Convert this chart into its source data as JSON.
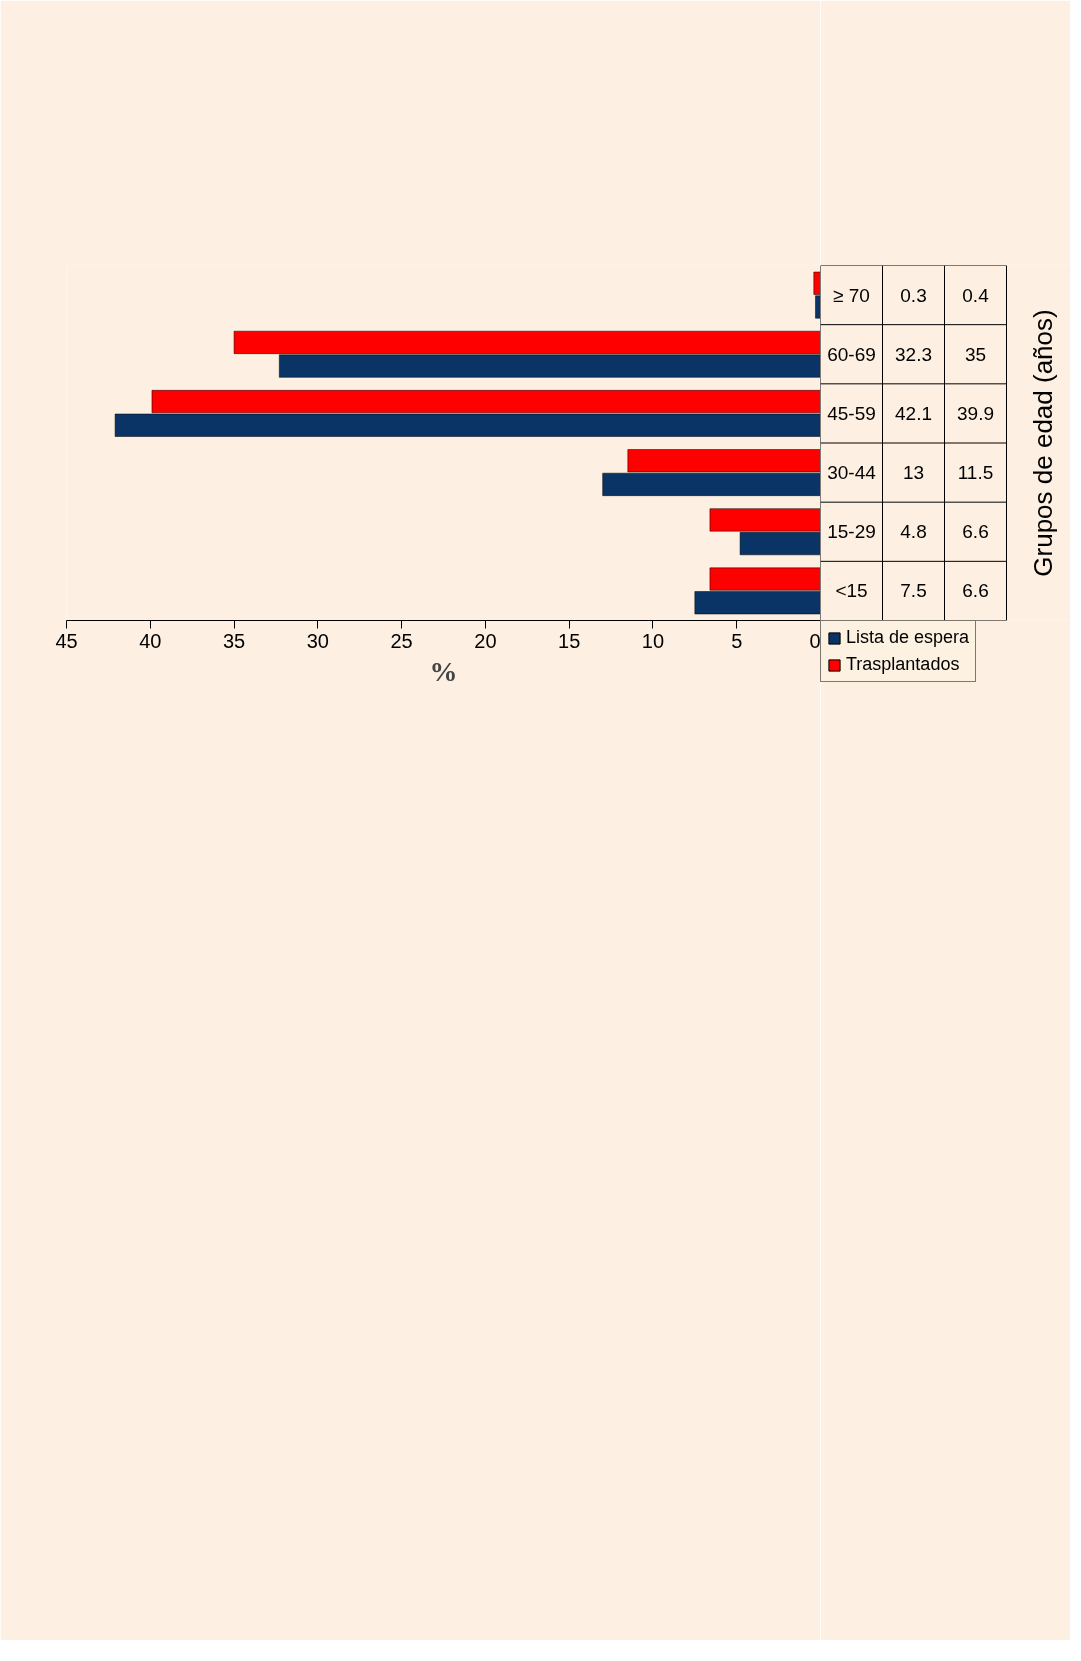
{
  "chart_data": {
    "type": "bar",
    "orientation": "horizontal",
    "xlabel": "%",
    "annotations": [
      "Grupos de edad (años)"
    ],
    "categories": [
      "≥ 70",
      "60-69",
      "45-59",
      "30-44",
      "15-29",
      "<15"
    ],
    "series": [
      {
        "name": "Lista de espera",
        "color": "#0a3366",
        "values": [
          0.3,
          32.3,
          42.1,
          13,
          4.8,
          7.5
        ]
      },
      {
        "name": "Trasplantados",
        "color": "#ff0000",
        "values": [
          0.4,
          35,
          39.9,
          11.5,
          6.6,
          6.6
        ]
      }
    ],
    "xlim": [
      45,
      0
    ],
    "xticks": [
      0,
      5,
      10,
      15,
      20,
      25,
      30,
      35,
      40,
      45
    ],
    "data_labels": true,
    "legend": "bottom",
    "grid": false
  }
}
